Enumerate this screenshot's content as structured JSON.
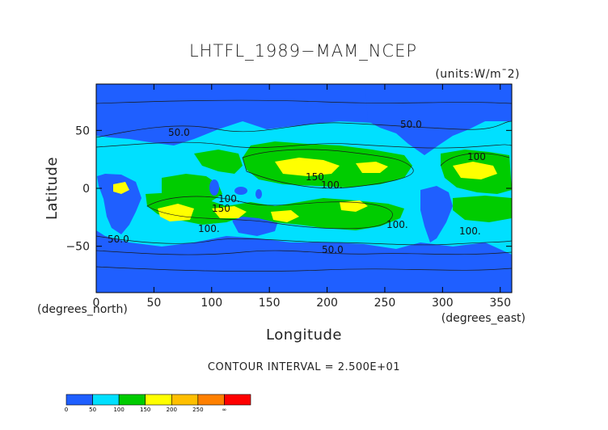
{
  "chart_data": {
    "type": "heatmap",
    "title": "LHTFL_1989−MAM_NCEP",
    "units": "(units:W/m¯2)",
    "xlabel": "Longitude",
    "ylabel": "Latitude",
    "x_unit_label": "(degrees_east)",
    "y_unit_label": "(degrees_north)",
    "xlim": [
      0,
      360
    ],
    "ylim": [
      -90,
      90
    ],
    "x_ticks": [
      "0",
      "50",
      "100",
      "150",
      "200",
      "250",
      "300",
      "350"
    ],
    "y_ticks": [
      "50",
      "0",
      "−50"
    ],
    "contour_interval_text": "CONTOUR INTERVAL = 2.500E+01",
    "contour_labels": [
      "50.0",
      "50.0",
      "150",
      "100.",
      "100.",
      "150",
      "100",
      "100.",
      "100.",
      "50.0",
      "50.0",
      "100."
    ],
    "colorbar": {
      "tick_labels": [
        "0",
        "50",
        "100",
        "150",
        "200",
        "250",
        "∞"
      ],
      "colors": [
        "#1f5fff",
        "#00e0ff",
        "#00cc00",
        "#ffff00",
        "#ffbf00",
        "#ff8000",
        "#ff0000"
      ]
    }
  }
}
